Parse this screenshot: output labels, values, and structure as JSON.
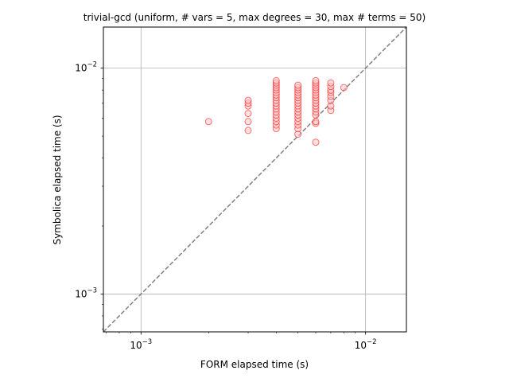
{
  "chart_data": {
    "type": "scatter",
    "title": "trivial-gcd (uniform, # vars = 5, max degrees = 30, max # terms = 50)",
    "xlabel": "FORM elapsed time (s)",
    "ylabel": "Symbolica elapsed time (s)",
    "xscale": "log",
    "yscale": "log",
    "xlim": [
      0.00068,
      0.0152
    ],
    "ylim": [
      0.00068,
      0.0152
    ],
    "grid": true,
    "x_ticks": [
      {
        "value": 0.001,
        "base": "10",
        "exp": "−3"
      },
      {
        "value": 0.01,
        "base": "10",
        "exp": "−2"
      }
    ],
    "y_ticks": [
      {
        "value": 0.001,
        "base": "10",
        "exp": "−3"
      },
      {
        "value": 0.01,
        "base": "10",
        "exp": "−2"
      }
    ],
    "reference_line": {
      "style": "dashed",
      "color": "#808080",
      "from": [
        0.00068,
        0.00068
      ],
      "to": [
        0.0152,
        0.0152
      ]
    },
    "marker": {
      "shape": "circle",
      "edge_color": "#ff0000",
      "face_color": "#ffc8c8",
      "alpha": 0.55
    },
    "points": [
      [
        0.002,
        0.0058
      ],
      [
        0.003,
        0.0053
      ],
      [
        0.003,
        0.0058
      ],
      [
        0.003,
        0.0063
      ],
      [
        0.003,
        0.0068
      ],
      [
        0.003,
        0.007
      ],
      [
        0.003,
        0.0072
      ],
      [
        0.004,
        0.0054
      ],
      [
        0.004,
        0.0056
      ],
      [
        0.004,
        0.0058
      ],
      [
        0.004,
        0.006
      ],
      [
        0.004,
        0.0062
      ],
      [
        0.004,
        0.0064
      ],
      [
        0.004,
        0.0066
      ],
      [
        0.004,
        0.0068
      ],
      [
        0.004,
        0.007
      ],
      [
        0.004,
        0.0072
      ],
      [
        0.004,
        0.0074
      ],
      [
        0.004,
        0.0076
      ],
      [
        0.004,
        0.0078
      ],
      [
        0.004,
        0.008
      ],
      [
        0.004,
        0.0082
      ],
      [
        0.004,
        0.0084
      ],
      [
        0.004,
        0.0086
      ],
      [
        0.004,
        0.0088
      ],
      [
        0.005,
        0.0051
      ],
      [
        0.005,
        0.0054
      ],
      [
        0.005,
        0.0056
      ],
      [
        0.005,
        0.0058
      ],
      [
        0.005,
        0.006
      ],
      [
        0.005,
        0.0062
      ],
      [
        0.005,
        0.0064
      ],
      [
        0.005,
        0.0066
      ],
      [
        0.005,
        0.0068
      ],
      [
        0.005,
        0.007
      ],
      [
        0.005,
        0.0072
      ],
      [
        0.005,
        0.0074
      ],
      [
        0.005,
        0.0076
      ],
      [
        0.005,
        0.0078
      ],
      [
        0.005,
        0.008
      ],
      [
        0.005,
        0.0082
      ],
      [
        0.005,
        0.0084
      ],
      [
        0.006,
        0.0047
      ],
      [
        0.006,
        0.0057
      ],
      [
        0.006,
        0.0058
      ],
      [
        0.006,
        0.0062
      ],
      [
        0.006,
        0.0064
      ],
      [
        0.006,
        0.0066
      ],
      [
        0.006,
        0.0068
      ],
      [
        0.006,
        0.007
      ],
      [
        0.006,
        0.0072
      ],
      [
        0.006,
        0.0074
      ],
      [
        0.006,
        0.0076
      ],
      [
        0.006,
        0.0078
      ],
      [
        0.006,
        0.008
      ],
      [
        0.006,
        0.0082
      ],
      [
        0.006,
        0.0084
      ],
      [
        0.006,
        0.0086
      ],
      [
        0.006,
        0.0088
      ],
      [
        0.007,
        0.0065
      ],
      [
        0.007,
        0.0068
      ],
      [
        0.007,
        0.0072
      ],
      [
        0.007,
        0.0075
      ],
      [
        0.007,
        0.0078
      ],
      [
        0.007,
        0.008
      ],
      [
        0.007,
        0.0083
      ],
      [
        0.007,
        0.0086
      ],
      [
        0.008,
        0.0082
      ]
    ]
  }
}
